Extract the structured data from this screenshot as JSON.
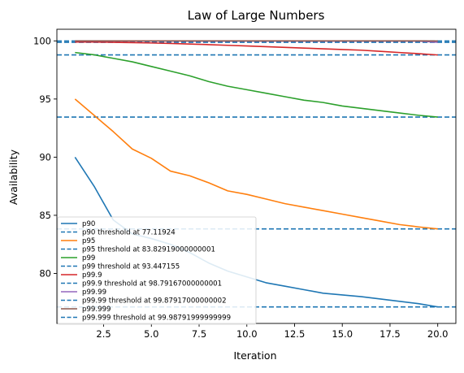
{
  "chart_data": {
    "type": "line",
    "title": "Law of Large Numbers",
    "xlabel": "Iteration",
    "ylabel": "Availability",
    "xlim": [
      0.05,
      20.95
    ],
    "ylim": [
      75.7,
      101.0
    ],
    "xticks": [
      2.5,
      5.0,
      7.5,
      10.0,
      12.5,
      15.0,
      17.5,
      20.0
    ],
    "xtick_labels": [
      "2.5",
      "5.0",
      "7.5",
      "10.0",
      "12.5",
      "15.0",
      "17.5",
      "20.0"
    ],
    "yticks": [
      80,
      85,
      90,
      95,
      100
    ],
    "ytick_labels": [
      "80",
      "85",
      "90",
      "95",
      "100"
    ],
    "grid": false,
    "legend_position": "bottom-left",
    "x": [
      1,
      2,
      3,
      4,
      5,
      6,
      7,
      8,
      9,
      10,
      11,
      12,
      13,
      14,
      15,
      16,
      17,
      18,
      19,
      20
    ],
    "series": [
      {
        "name": "p90",
        "color": "#1f77b4",
        "values": [
          90.0,
          87.5,
          84.6,
          83.4,
          83.0,
          82.5,
          81.8,
          80.9,
          80.2,
          79.7,
          79.2,
          78.9,
          78.6,
          78.3,
          78.15,
          78.0,
          77.8,
          77.6,
          77.4,
          77.12
        ]
      },
      {
        "name": "p95",
        "color": "#ff7f0e",
        "values": [
          95.0,
          93.6,
          92.2,
          90.7,
          89.9,
          88.8,
          88.4,
          87.8,
          87.1,
          86.8,
          86.4,
          86.0,
          85.7,
          85.4,
          85.1,
          84.8,
          84.5,
          84.2,
          84.0,
          83.83
        ]
      },
      {
        "name": "p99",
        "color": "#2ca02c",
        "values": [
          99.0,
          98.8,
          98.5,
          98.2,
          97.8,
          97.4,
          97.0,
          96.5,
          96.1,
          95.8,
          95.5,
          95.2,
          94.9,
          94.7,
          94.4,
          94.2,
          94.0,
          93.8,
          93.6,
          93.45
        ]
      },
      {
        "name": "p99.9",
        "color": "#d62728",
        "values": [
          99.9,
          99.9,
          99.88,
          99.85,
          99.82,
          99.78,
          99.73,
          99.68,
          99.62,
          99.56,
          99.5,
          99.44,
          99.38,
          99.32,
          99.26,
          99.2,
          99.1,
          99.0,
          98.9,
          98.79
        ]
      },
      {
        "name": "p99.99",
        "color": "#9467bd",
        "values": [
          99.99,
          99.99,
          99.99,
          99.99,
          99.99,
          99.99,
          99.98,
          99.98,
          99.98,
          99.98,
          99.98,
          99.98,
          99.98,
          99.98,
          99.98,
          99.98,
          99.98,
          99.98,
          99.98,
          99.88
        ]
      },
      {
        "name": "p99.999",
        "color": "#8c564b",
        "values": [
          100.0,
          100.0,
          100.0,
          100.0,
          100.0,
          100.0,
          100.0,
          100.0,
          100.0,
          100.0,
          100.0,
          100.0,
          100.0,
          100.0,
          100.0,
          100.0,
          100.0,
          100.0,
          100.0,
          99.988
        ]
      }
    ],
    "thresholds": [
      {
        "value": 77.11924,
        "color": "#1f77b4"
      },
      {
        "value": 83.82919000000001,
        "color": "#1f77b4"
      },
      {
        "value": 93.447155,
        "color": "#1f77b4"
      },
      {
        "value": 98.79167000000001,
        "color": "#1f77b4"
      },
      {
        "value": 99.87917000000002,
        "color": "#1f77b4"
      },
      {
        "value": 99.98791999999999,
        "color": "#1f77b4"
      }
    ],
    "legend": [
      {
        "label": "p90",
        "style": "solid",
        "color": "#1f77b4"
      },
      {
        "label": "p90 threshold at 77.11924",
        "style": "dashed",
        "color": "#1f77b4"
      },
      {
        "label": "p95",
        "style": "solid",
        "color": "#ff7f0e"
      },
      {
        "label": "p95 threshold at 83.82919000000001",
        "style": "dashed",
        "color": "#1f77b4"
      },
      {
        "label": "p99",
        "style": "solid",
        "color": "#2ca02c"
      },
      {
        "label": "p99 threshold at 93.447155",
        "style": "dashed",
        "color": "#1f77b4"
      },
      {
        "label": "p99.9",
        "style": "solid",
        "color": "#d62728"
      },
      {
        "label": "p99.9 threshold at 98.79167000000001",
        "style": "dashed",
        "color": "#1f77b4"
      },
      {
        "label": "p99.99",
        "style": "solid",
        "color": "#9467bd"
      },
      {
        "label": "p99.99 threshold at 99.87917000000002",
        "style": "dashed",
        "color": "#1f77b4"
      },
      {
        "label": "p99.999",
        "style": "solid",
        "color": "#8c564b"
      },
      {
        "label": "p99.999 threshold at 99.98791999999999",
        "style": "dashed",
        "color": "#1f77b4"
      }
    ]
  }
}
